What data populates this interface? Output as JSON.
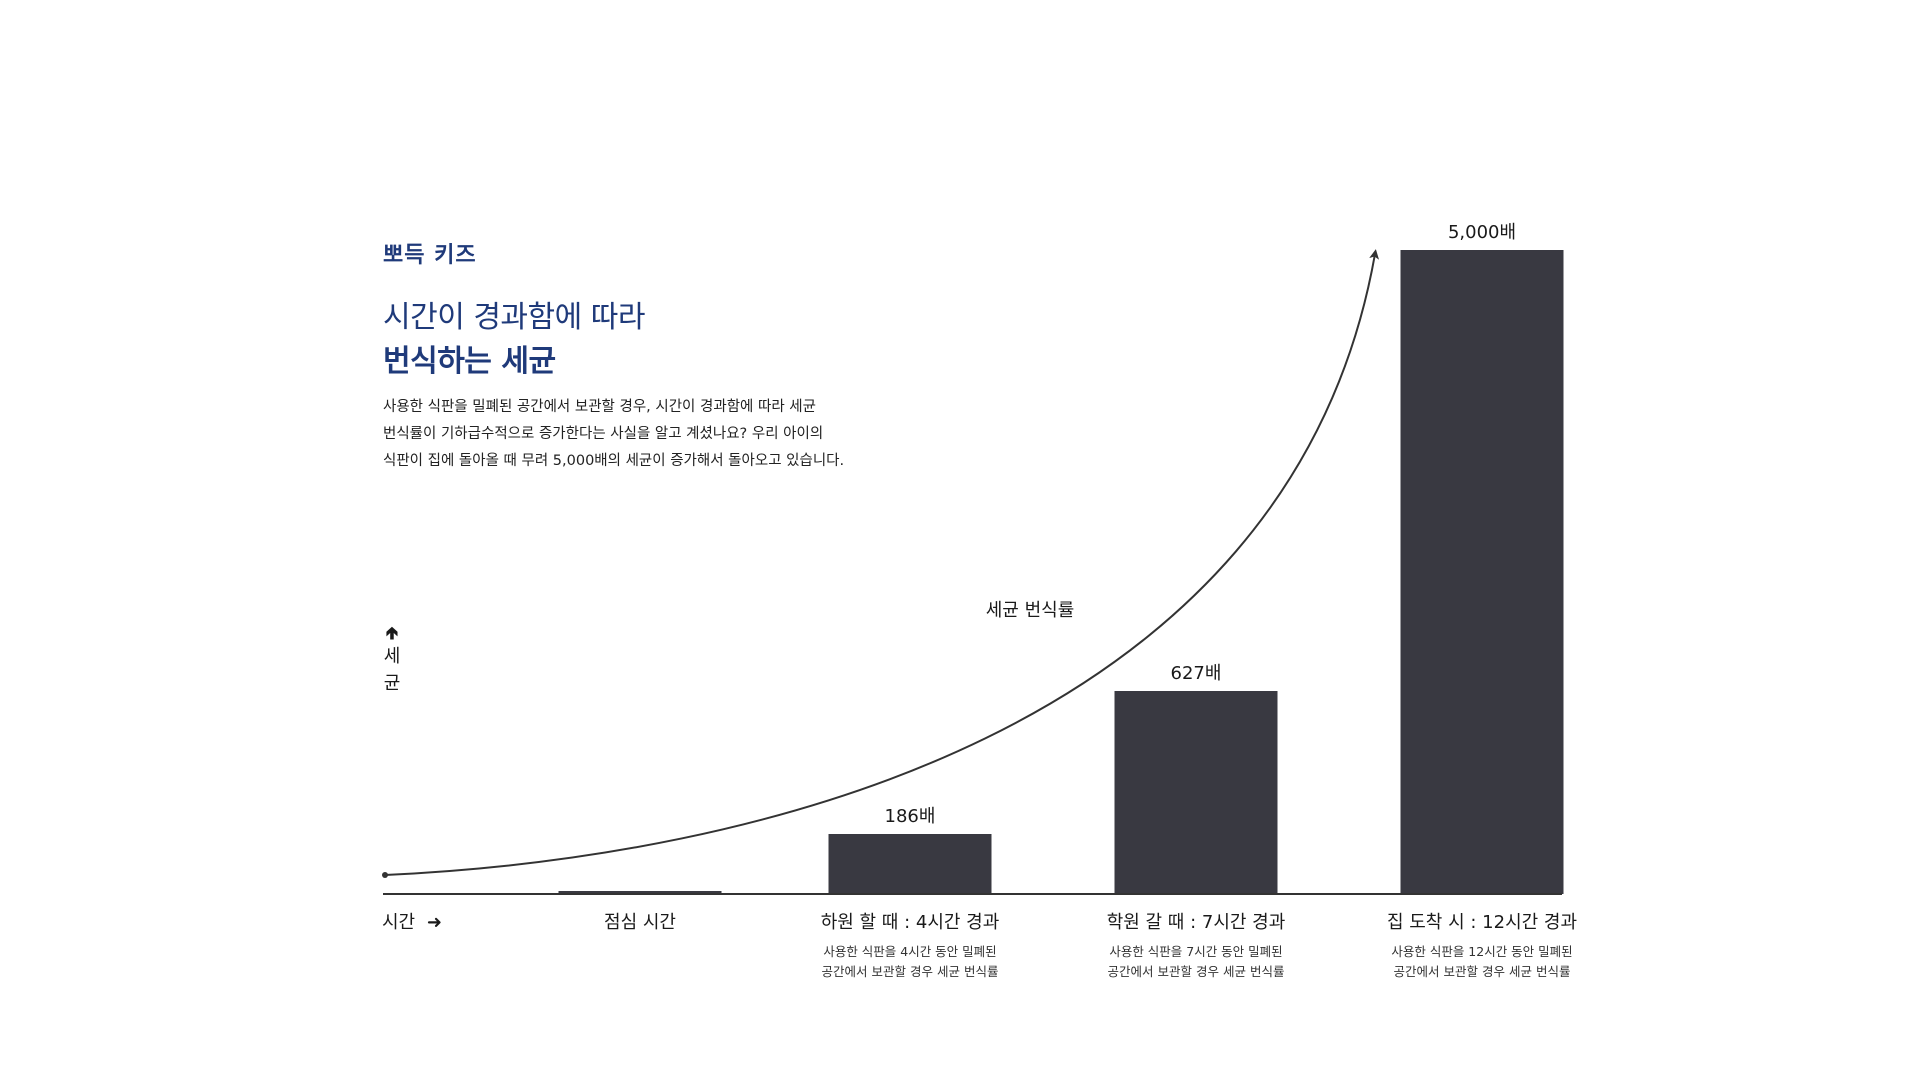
{
  "brand": "뽀득 키즈",
  "heading": {
    "line1": "시간이 경과함에 따라",
    "line2": "번식하는 세균"
  },
  "description": [
    "사용한 식판을 밀폐된 공간에서 보관할 경우, 시간이 경과함에 따라 세균",
    "번식률이 기하급수적으로 증가한다는 사실을 알고 계셨나요? 우리 아이의",
    "식판이 집에 돌아올 때 무려 5,000배의 세균이 증가해서 돌아오고 있습니다."
  ],
  "chart_data": {
    "type": "bar",
    "categories": [
      "점심 시간",
      "하원 할 때 : 4시간 경과",
      "학원 갈 때 : 7시간 경과",
      "집 도착 시 : 12시간 경과"
    ],
    "values": [
      1,
      186,
      627,
      5000
    ],
    "value_labels": [
      "",
      "186배",
      "627배",
      "5,000배"
    ],
    "sublabels": [
      [],
      [
        "사용한 식판을 4시간 동안 밀폐된",
        "공간에서 보관할 경우 세균 번식률"
      ],
      [
        "사용한 식판을 7시간 동안 밀폐된",
        "공간에서 보관할 경우 세균 번식률"
      ],
      [
        "사용한 식판을 12시간 동안 밀폐된",
        "공간에서 보관할 경우 세균 번식률"
      ]
    ],
    "ylabel": "세균",
    "ylabel_chars": [
      "세",
      "균"
    ],
    "xlabel": "시간",
    "curve_label": "세균 번식률",
    "scale": "nonlinear-visual",
    "bar_color": "#393941",
    "curve_color": "#333333"
  }
}
